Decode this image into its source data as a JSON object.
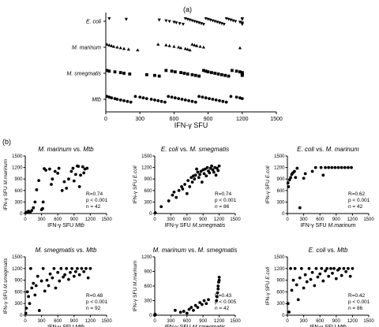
{
  "figure": {
    "panel_a_label": "(a)",
    "panel_b_label": "(b)"
  },
  "chart_data": [
    {
      "type": "scatter",
      "panel": "a",
      "title": "",
      "xlabel": "IFN-γ SFU",
      "ylabel": "",
      "xlim": [
        0,
        1500
      ],
      "xticks": [
        0,
        300,
        600,
        900,
        1200,
        1500
      ],
      "grid": false,
      "categories": [
        "E. coli",
        "M. marinum",
        "M. smegmatis",
        "Mtb"
      ],
      "series": [
        {
          "label": "E. coli",
          "marker": "triangle-down",
          "values": [
            30,
            180,
            470,
            530,
            560,
            600,
            620,
            650,
            680,
            700,
            720,
            740,
            760,
            780,
            800,
            820,
            840,
            860,
            880,
            900,
            920,
            940,
            960,
            980,
            1000,
            1020,
            1040,
            1060,
            1080,
            1100,
            1120,
            1140,
            1180,
            1200,
            1200,
            1200,
            1200,
            1200
          ]
        },
        {
          "label": "M. marinum",
          "marker": "triangle-up",
          "values": [
            10,
            30,
            50,
            70,
            100,
            130,
            160,
            200,
            280,
            460,
            530,
            560,
            600,
            640,
            660,
            700,
            720,
            740,
            760,
            780,
            800,
            830,
            860,
            1180
          ]
        },
        {
          "label": "M. smegmatis",
          "marker": "square",
          "values": [
            10,
            30,
            80,
            130,
            160,
            210,
            360,
            430,
            470,
            530,
            580,
            610,
            660,
            690,
            720,
            760,
            790,
            820,
            860,
            880,
            900,
            930,
            960,
            990,
            1020,
            1050,
            1080,
            1110,
            1150,
            1180,
            1200,
            1200,
            1200,
            1200,
            1200
          ]
        },
        {
          "label": "Mtb",
          "marker": "circle",
          "values": [
            10,
            30,
            50,
            80,
            100,
            130,
            160,
            190,
            220,
            260,
            300,
            330,
            360,
            400,
            430,
            460,
            490,
            520,
            550,
            580,
            610,
            640,
            670,
            700,
            730,
            760,
            790,
            820,
            850,
            880,
            910,
            940,
            970,
            1000,
            1030,
            1060,
            1100,
            1150,
            1180,
            1200
          ]
        }
      ]
    },
    {
      "type": "scatter",
      "panel": "b1",
      "title": "M. marinum vs. Mtb",
      "xlabel": "IFN-γ SFU Mtb",
      "ylabel": "IFN-γ SFU M.marinum",
      "xlim": [
        0,
        1500
      ],
      "ylim": [
        0,
        1500
      ],
      "xticks": [
        0,
        300,
        600,
        900,
        1200,
        1500
      ],
      "yticks": [
        0,
        300,
        600,
        900,
        1200,
        1500
      ],
      "stats": {
        "r": "R=0.74",
        "p": "p < 0.001",
        "n": "n = 42"
      },
      "points": [
        [
          10,
          20
        ],
        [
          40,
          40
        ],
        [
          60,
          60
        ],
        [
          90,
          30
        ],
        [
          120,
          80
        ],
        [
          150,
          150
        ],
        [
          180,
          300
        ],
        [
          210,
          620
        ],
        [
          250,
          860
        ],
        [
          300,
          100
        ],
        [
          320,
          130
        ],
        [
          330,
          300
        ],
        [
          350,
          1170
        ],
        [
          380,
          1130
        ],
        [
          450,
          1160
        ],
        [
          480,
          760
        ],
        [
          500,
          900
        ],
        [
          550,
          1100
        ],
        [
          600,
          1050
        ],
        [
          620,
          1180
        ],
        [
          680,
          600
        ],
        [
          720,
          830
        ],
        [
          760,
          660
        ],
        [
          800,
          900
        ],
        [
          850,
          1100
        ],
        [
          880,
          1180
        ],
        [
          900,
          850
        ],
        [
          930,
          1020
        ],
        [
          960,
          1240
        ],
        [
          980,
          1230
        ],
        [
          1000,
          700
        ],
        [
          1020,
          1000
        ],
        [
          1060,
          1220
        ],
        [
          1080,
          1060
        ],
        [
          1100,
          1160
        ],
        [
          1140,
          1180
        ]
      ]
    },
    {
      "type": "scatter",
      "panel": "b2",
      "title": "E. coli vs. M. smegmatis",
      "xlabel": "IFN-γ SFU M.smegmatis",
      "ylabel": "IFN-γ SFU E.coli",
      "xlim": [
        0,
        1500
      ],
      "ylim": [
        0,
        1500
      ],
      "xticks": [
        0,
        300,
        600,
        900,
        1200,
        1500
      ],
      "yticks": [
        0,
        300,
        600,
        900,
        1200,
        1500
      ],
      "stats": {
        "r": "R=0.74",
        "p": "p < 0.001",
        "n": "n = 86"
      },
      "points": [
        [
          10,
          20
        ],
        [
          120,
          180
        ],
        [
          260,
          330
        ],
        [
          330,
          480
        ],
        [
          360,
          560
        ],
        [
          400,
          420
        ],
        [
          450,
          600
        ],
        [
          500,
          700
        ],
        [
          520,
          640
        ],
        [
          560,
          760
        ],
        [
          600,
          520
        ],
        [
          620,
          860
        ],
        [
          650,
          700
        ],
        [
          680,
          940
        ],
        [
          700,
          820
        ],
        [
          720,
          980
        ],
        [
          740,
          900
        ],
        [
          760,
          1000
        ],
        [
          780,
          1160
        ],
        [
          800,
          1080
        ],
        [
          820,
          940
        ],
        [
          840,
          1020
        ],
        [
          860,
          1100
        ],
        [
          880,
          820
        ],
        [
          900,
          1140
        ],
        [
          920,
          1040
        ],
        [
          940,
          1160
        ],
        [
          960,
          980
        ],
        [
          980,
          1200
        ],
        [
          1000,
          1110
        ],
        [
          1020,
          1060
        ],
        [
          1040,
          1180
        ],
        [
          1060,
          1240
        ],
        [
          1080,
          1140
        ],
        [
          1100,
          1080
        ],
        [
          1120,
          1200
        ],
        [
          1140,
          1000
        ],
        [
          1160,
          1180
        ],
        [
          1180,
          1120
        ],
        [
          1200,
          1240
        ]
      ]
    },
    {
      "type": "scatter",
      "panel": "b3",
      "title": "E. coli vs. M. marinum",
      "xlabel": "IFN-γ SFU M.marinum",
      "ylabel": "IFN-γ SFU E.coli",
      "xlim": [
        0,
        1500
      ],
      "ylim": [
        0,
        1500
      ],
      "xticks": [
        0,
        300,
        600,
        900,
        1200,
        1500
      ],
      "yticks": [
        0,
        300,
        600,
        900,
        1200,
        1500
      ],
      "stats": {
        "r": "R=0.62",
        "p": "p < 0.001",
        "n": "n = 42"
      },
      "points": [
        [
          10,
          800
        ],
        [
          20,
          700
        ],
        [
          40,
          880
        ],
        [
          60,
          940
        ],
        [
          80,
          1020
        ],
        [
          100,
          1060
        ],
        [
          130,
          1100
        ],
        [
          150,
          940
        ],
        [
          180,
          1180
        ],
        [
          230,
          150
        ],
        [
          300,
          920
        ],
        [
          330,
          1040
        ],
        [
          460,
          1100
        ],
        [
          520,
          1200
        ],
        [
          620,
          1200
        ],
        [
          660,
          1000
        ],
        [
          700,
          1200
        ],
        [
          760,
          1200
        ],
        [
          820,
          1200
        ],
        [
          880,
          1200
        ],
        [
          940,
          1200
        ],
        [
          1000,
          1200
        ],
        [
          1060,
          1200
        ],
        [
          1120,
          1200
        ],
        [
          1180,
          1200
        ]
      ]
    },
    {
      "type": "scatter",
      "panel": "b4",
      "title": "M. smegmatis vs. Mtb",
      "xlabel": "IFN-γ SFU Mtb",
      "ylabel": "IFN-γ SFU M.smegmatis",
      "xlim": [
        0,
        1500
      ],
      "ylim": [
        0,
        1500
      ],
      "xticks": [
        0,
        300,
        600,
        900,
        1200,
        1500
      ],
      "yticks": [
        0,
        300,
        600,
        900,
        1200,
        1500
      ],
      "stats": {
        "r": "R=0.48",
        "p": "p < 0.001",
        "n": "n = 92"
      },
      "points": [
        [
          10,
          50
        ],
        [
          20,
          180
        ],
        [
          40,
          600
        ],
        [
          60,
          480
        ],
        [
          80,
          300
        ],
        [
          100,
          1200
        ],
        [
          120,
          700
        ],
        [
          150,
          820
        ],
        [
          180,
          520
        ],
        [
          200,
          760
        ],
        [
          230,
          1000
        ],
        [
          260,
          120
        ],
        [
          300,
          880
        ],
        [
          330,
          1200
        ],
        [
          360,
          620
        ],
        [
          400,
          900
        ],
        [
          430,
          760
        ],
        [
          460,
          1060
        ],
        [
          500,
          960
        ],
        [
          530,
          1200
        ],
        [
          560,
          700
        ],
        [
          600,
          1100
        ],
        [
          630,
          880
        ],
        [
          660,
          1200
        ],
        [
          700,
          980
        ],
        [
          730,
          1040
        ],
        [
          760,
          1200
        ],
        [
          800,
          920
        ],
        [
          830,
          1100
        ],
        [
          860,
          1200
        ],
        [
          900,
          1000
        ],
        [
          930,
          1120
        ],
        [
          960,
          1200
        ],
        [
          1000,
          1040
        ],
        [
          1040,
          1200
        ],
        [
          1080,
          1120
        ],
        [
          1120,
          1200
        ],
        [
          1160,
          960
        ],
        [
          1200,
          1200
        ]
      ]
    },
    {
      "type": "scatter",
      "panel": "b5",
      "title": "M. marinum vs. M. smegmatis",
      "xlabel": "IFN-γ SFU M.smegmatis",
      "ylabel": "IFN-γ SFU M.marinum",
      "xlim": [
        0,
        1500
      ],
      "ylim": [
        0,
        1200
      ],
      "xticks": [
        0,
        300,
        600,
        900,
        1200,
        1500
      ],
      "yticks": [
        0,
        300,
        600,
        900,
        1200
      ],
      "stats": {
        "r": "R=0.43",
        "p": "p < 0.005",
        "n": "n = 42"
      },
      "points": [
        [
          0,
          0
        ],
        [
          5,
          20
        ],
        [
          10,
          10
        ],
        [
          380,
          100
        ],
        [
          480,
          60
        ],
        [
          540,
          80
        ],
        [
          600,
          40
        ],
        [
          640,
          120
        ],
        [
          680,
          160
        ],
        [
          720,
          100
        ],
        [
          760,
          200
        ],
        [
          800,
          160
        ],
        [
          840,
          260
        ],
        [
          880,
          220
        ],
        [
          920,
          300
        ],
        [
          960,
          240
        ],
        [
          1000,
          320
        ],
        [
          1150,
          300
        ],
        [
          1160,
          380
        ],
        [
          1170,
          460
        ],
        [
          1180,
          540
        ],
        [
          1180,
          600
        ],
        [
          1190,
          680
        ],
        [
          1200,
          720
        ],
        [
          1200,
          780
        ]
      ]
    },
    {
      "type": "scatter",
      "panel": "b6",
      "title": "E. coli vs. Mtb",
      "xlabel": "IFN-γ SFU Mtb",
      "ylabel": "IFN-γ SFU E.coli",
      "xlim": [
        0,
        1500
      ],
      "ylim": [
        0,
        1500
      ],
      "xticks": [
        0,
        300,
        600,
        900,
        1200,
        1500
      ],
      "yticks": [
        0,
        300,
        600,
        900,
        1200,
        1500
      ],
      "stats": {
        "r": "R=0.42",
        "p": "p < 0.001",
        "n": "n = 86"
      },
      "points": [
        [
          10,
          300
        ],
        [
          30,
          80
        ],
        [
          60,
          1200
        ],
        [
          80,
          640
        ],
        [
          110,
          900
        ],
        [
          140,
          1200
        ],
        [
          170,
          780
        ],
        [
          200,
          400
        ],
        [
          230,
          960
        ],
        [
          260,
          1200
        ],
        [
          300,
          700
        ],
        [
          330,
          1040
        ],
        [
          360,
          860
        ],
        [
          400,
          1200
        ],
        [
          430,
          920
        ],
        [
          460,
          1100
        ],
        [
          500,
          760
        ],
        [
          530,
          1200
        ],
        [
          560,
          980
        ],
        [
          600,
          1060
        ],
        [
          630,
          1200
        ],
        [
          660,
          880
        ],
        [
          700,
          1140
        ],
        [
          730,
          1200
        ],
        [
          760,
          1000
        ],
        [
          800,
          1200
        ],
        [
          830,
          1080
        ],
        [
          860,
          1200
        ],
        [
          900,
          940
        ],
        [
          930,
          1160
        ],
        [
          960,
          1200
        ],
        [
          1000,
          1020
        ],
        [
          1040,
          1200
        ],
        [
          1080,
          1120
        ],
        [
          1120,
          1200
        ],
        [
          1160,
          1000
        ],
        [
          1200,
          1200
        ]
      ]
    }
  ]
}
